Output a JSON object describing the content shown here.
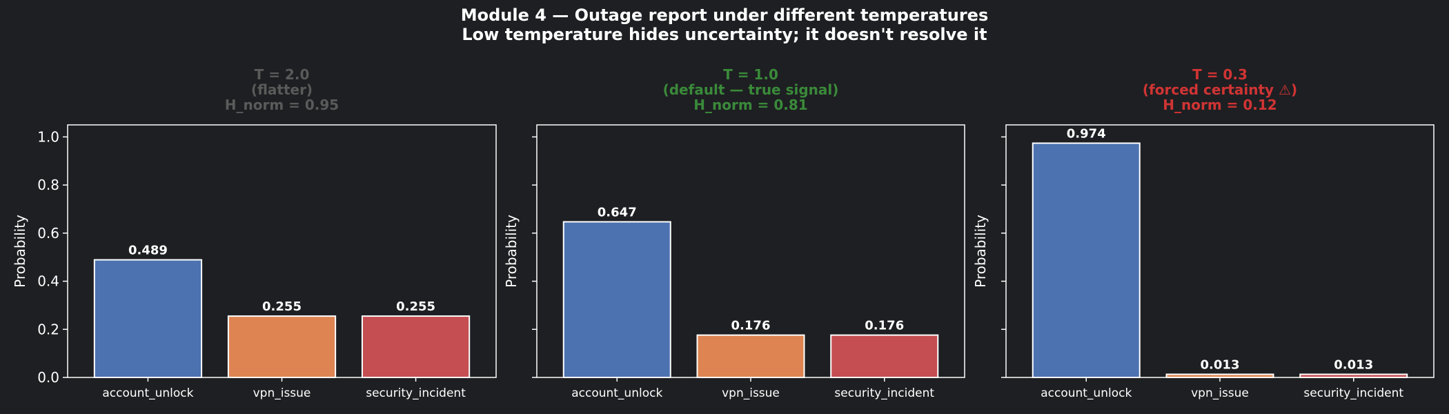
{
  "figure": {
    "title_line1": "Module 4 — Outage report under different temperatures",
    "title_line2": "Low temperature hides uncertainty; it doesn't resolve it",
    "background": "#1e1f22"
  },
  "colors": {
    "bars": [
      "#4c72b0",
      "#dd8452",
      "#c44e52"
    ],
    "bar_edge": "#ffffff",
    "axes": "#ffffff"
  },
  "chart_data": [
    {
      "type": "bar",
      "title_lines": [
        "T = 2.0",
        "(flatter)",
        "H_norm = 0.95"
      ],
      "title_color": "#5a5a5a",
      "categories": [
        "account_unlock",
        "vpn_issue",
        "security_incident"
      ],
      "values": [
        0.489,
        0.255,
        0.255
      ],
      "value_labels": [
        "0.489",
        "0.255",
        "0.255"
      ],
      "xlabel": "",
      "ylabel": "Probability",
      "ylim": [
        0,
        1.05
      ],
      "yticks": [
        0.0,
        0.2,
        0.4,
        0.6,
        0.8,
        1.0
      ],
      "ytick_labels": [
        "0.0",
        "0.2",
        "0.4",
        "0.6",
        "0.8",
        "1.0"
      ],
      "show_ytick_labels": true,
      "grid": false
    },
    {
      "type": "bar",
      "title_lines": [
        "T = 1.0",
        "(default — true signal)",
        "H_norm = 0.81"
      ],
      "title_color": "#3a8a3a",
      "categories": [
        "account_unlock",
        "vpn_issue",
        "security_incident"
      ],
      "values": [
        0.647,
        0.176,
        0.176
      ],
      "value_labels": [
        "0.647",
        "0.176",
        "0.176"
      ],
      "xlabel": "",
      "ylabel": "Probability",
      "ylim": [
        0,
        1.05
      ],
      "yticks": [
        0.0,
        0.2,
        0.4,
        0.6,
        0.8,
        1.0
      ],
      "ytick_labels": [],
      "show_ytick_labels": false,
      "grid": false
    },
    {
      "type": "bar",
      "title_lines": [
        "T = 0.3",
        "(forced certainty ⚠)",
        "H_norm = 0.12"
      ],
      "title_color": "#d13434",
      "categories": [
        "account_unlock",
        "vpn_issue",
        "security_incident"
      ],
      "values": [
        0.974,
        0.013,
        0.013
      ],
      "value_labels": [
        "0.974",
        "0.013",
        "0.013"
      ],
      "xlabel": "",
      "ylabel": "Probability",
      "ylim": [
        0,
        1.05
      ],
      "yticks": [
        0.0,
        0.2,
        0.4,
        0.6,
        0.8,
        1.0
      ],
      "ytick_labels": [],
      "show_ytick_labels": false,
      "grid": false
    }
  ]
}
